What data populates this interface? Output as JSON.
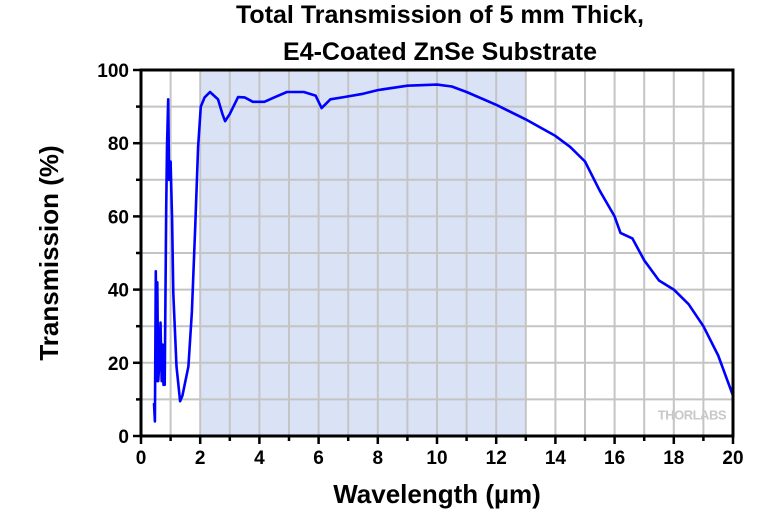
{
  "chart_data": {
    "type": "line",
    "title_lines": [
      "Total Transmission of 5 mm Thick,",
      "E4-Coated ZnSe Substrate"
    ],
    "xlabel": "Wavelength (µm)",
    "ylabel": "Transmission (%)",
    "xlim": [
      0,
      20
    ],
    "ylim": [
      0,
      100
    ],
    "xticks": [
      0,
      2,
      4,
      6,
      8,
      10,
      12,
      14,
      16,
      18,
      20
    ],
    "yticks": [
      0,
      20,
      40,
      60,
      80,
      100
    ],
    "grid": true,
    "shaded_region": {
      "x_start": 2,
      "x_end": 13,
      "color": "#dae3f5"
    },
    "line_color": "#0000ff",
    "watermark": "THORLABS",
    "series": [
      {
        "x": [
          0.44,
          0.47,
          0.5,
          0.52,
          0.55,
          0.58,
          0.62,
          0.66,
          0.7,
          0.73,
          0.76,
          0.8,
          0.85,
          0.88,
          0.92,
          0.95,
          1.0,
          1.05,
          1.09,
          1.2,
          1.32,
          1.4,
          1.6,
          1.72,
          1.83,
          1.93,
          2.02,
          2.15,
          2.33,
          2.6,
          2.75,
          2.84,
          3.0,
          3.28,
          3.5,
          3.78,
          4.17,
          4.5,
          4.93,
          5.5,
          5.9,
          6.1,
          6.4,
          6.85,
          7.5,
          8,
          9,
          10,
          10.5,
          11,
          12,
          13,
          14,
          14.5,
          15,
          15.5,
          16,
          16.2,
          16.6,
          17,
          17.5,
          18,
          18.5,
          19,
          19.5,
          20
        ],
        "y": [
          9,
          4,
          45,
          15,
          42,
          15,
          20,
          31,
          15,
          25,
          14,
          14,
          62,
          79,
          92,
          70,
          75,
          59,
          39,
          19,
          9.5,
          11,
          19,
          34,
          57,
          79,
          90,
          92.5,
          94,
          92,
          88,
          86,
          88,
          92.6,
          92.5,
          91.3,
          91.3,
          92.5,
          94,
          94,
          93,
          89.6,
          92,
          92.6,
          93.5,
          94.5,
          95.7,
          96,
          95.5,
          94,
          90.5,
          86.5,
          82,
          79,
          75,
          67,
          60,
          55.5,
          54,
          48,
          42.5,
          40,
          36,
          30,
          22,
          11
        ]
      }
    ]
  }
}
